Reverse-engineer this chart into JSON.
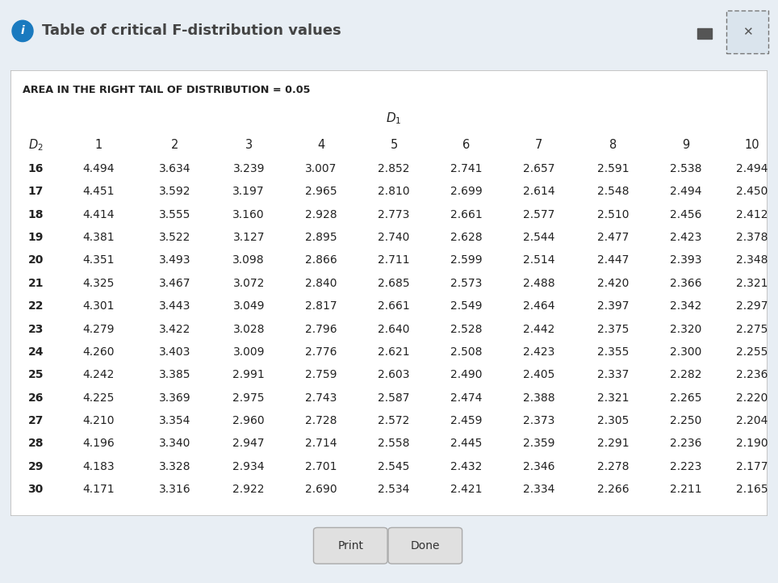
{
  "title_bar_text": "Table of critical F-distribution values",
  "area_label": "AREA IN THE RIGHT TAIL OF DISTRIBUTION = 0.05",
  "col_headers": [
    "1",
    "2",
    "3",
    "4",
    "5",
    "6",
    "7",
    "8",
    "9",
    "10"
  ],
  "row_headers": [
    "16",
    "17",
    "18",
    "19",
    "20",
    "21",
    "22",
    "23",
    "24",
    "25",
    "26",
    "27",
    "28",
    "29",
    "30"
  ],
  "data": [
    [
      4.494,
      3.634,
      3.239,
      3.007,
      2.852,
      2.741,
      2.657,
      2.591,
      2.538,
      2.494
    ],
    [
      4.451,
      3.592,
      3.197,
      2.965,
      2.81,
      2.699,
      2.614,
      2.548,
      2.494,
      2.45
    ],
    [
      4.414,
      3.555,
      3.16,
      2.928,
      2.773,
      2.661,
      2.577,
      2.51,
      2.456,
      2.412
    ],
    [
      4.381,
      3.522,
      3.127,
      2.895,
      2.74,
      2.628,
      2.544,
      2.477,
      2.423,
      2.378
    ],
    [
      4.351,
      3.493,
      3.098,
      2.866,
      2.711,
      2.599,
      2.514,
      2.447,
      2.393,
      2.348
    ],
    [
      4.325,
      3.467,
      3.072,
      2.84,
      2.685,
      2.573,
      2.488,
      2.42,
      2.366,
      2.321
    ],
    [
      4.301,
      3.443,
      3.049,
      2.817,
      2.661,
      2.549,
      2.464,
      2.397,
      2.342,
      2.297
    ],
    [
      4.279,
      3.422,
      3.028,
      2.796,
      2.64,
      2.528,
      2.442,
      2.375,
      2.32,
      2.275
    ],
    [
      4.26,
      3.403,
      3.009,
      2.776,
      2.621,
      2.508,
      2.423,
      2.355,
      2.3,
      2.255
    ],
    [
      4.242,
      3.385,
      2.991,
      2.759,
      2.603,
      2.49,
      2.405,
      2.337,
      2.282,
      2.236
    ],
    [
      4.225,
      3.369,
      2.975,
      2.743,
      2.587,
      2.474,
      2.388,
      2.321,
      2.265,
      2.22
    ],
    [
      4.21,
      3.354,
      2.96,
      2.728,
      2.572,
      2.459,
      2.373,
      2.305,
      2.25,
      2.204
    ],
    [
      4.196,
      3.34,
      2.947,
      2.714,
      2.558,
      2.445,
      2.359,
      2.291,
      2.236,
      2.19
    ],
    [
      4.183,
      3.328,
      2.934,
      2.701,
      2.545,
      2.432,
      2.346,
      2.278,
      2.223,
      2.177
    ],
    [
      4.171,
      3.316,
      2.922,
      2.69,
      2.534,
      2.421,
      2.334,
      2.266,
      2.211,
      2.165
    ]
  ],
  "bg_color": "#e8eef4",
  "title_bar_bg": "#dae4ed",
  "table_bg": "#ffffff",
  "table_border_color": "#bbbbbb",
  "info_icon_color": "#1a7abf",
  "text_color": "#222222",
  "button_bg": "#e0e0e0",
  "button_border": "#aaaaaa",
  "button_text_color": "#333333",
  "sep_color": "#a8b8c8",
  "title_text_color": "#444444"
}
